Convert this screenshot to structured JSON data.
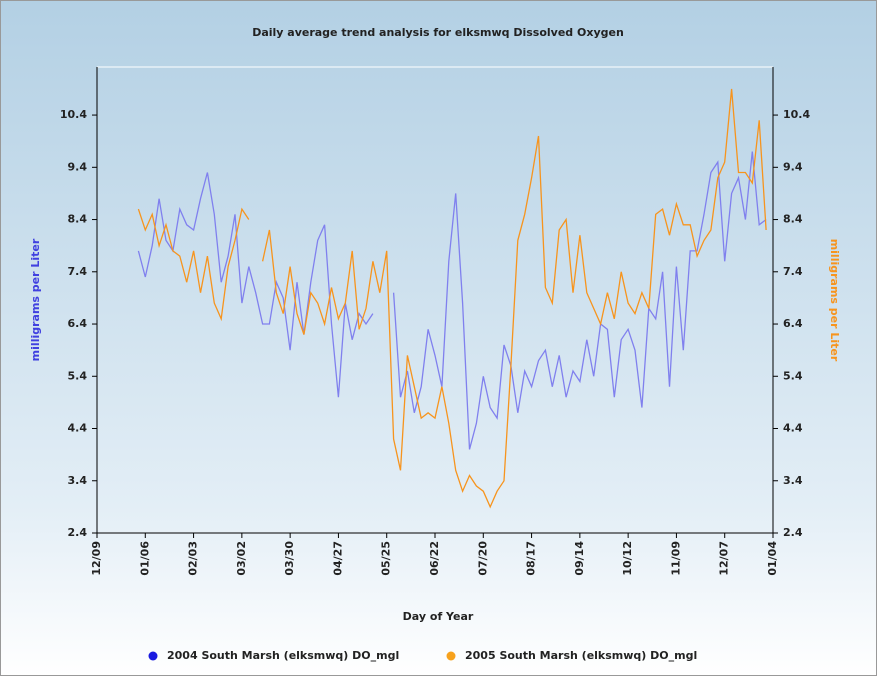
{
  "chart_data": {
    "type": "line",
    "title": "Daily average trend analysis for elksmwq Dissolved Oxygen",
    "xlabel": "Day of Year",
    "ylabel": "milligrams per Liter",
    "y2label": "milligrams per Liter",
    "xlim": [
      0,
      392
    ],
    "xticks": [
      {
        "value": 0,
        "label": "12/09"
      },
      {
        "value": 28,
        "label": "01/06"
      },
      {
        "value": 56,
        "label": "02/03"
      },
      {
        "value": 84,
        "label": "03/02"
      },
      {
        "value": 112,
        "label": "03/30"
      },
      {
        "value": 140,
        "label": "04/27"
      },
      {
        "value": 168,
        "label": "05/25"
      },
      {
        "value": 196,
        "label": "06/22"
      },
      {
        "value": 224,
        "label": "07/20"
      },
      {
        "value": 252,
        "label": "08/17"
      },
      {
        "value": 280,
        "label": "09/14"
      },
      {
        "value": 308,
        "label": "10/12"
      },
      {
        "value": 336,
        "label": "11/09"
      },
      {
        "value": 364,
        "label": "12/07"
      },
      {
        "value": 392,
        "label": "01/04"
      }
    ],
    "ylim": [
      2.4,
      11.32
    ],
    "yticks": [
      2.4,
      3.4,
      4.4,
      5.4,
      6.4,
      7.4,
      8.4,
      9.4,
      10.4
    ],
    "y2lim": [
      2.4,
      11.32
    ],
    "y2ticks": [
      2.4,
      3.4,
      4.4,
      5.4,
      6.4,
      7.4,
      8.4,
      9.4,
      10.4
    ],
    "x": [
      24,
      28,
      32,
      36,
      40,
      44,
      48,
      52,
      56,
      60,
      64,
      68,
      72,
      76,
      80,
      84,
      88,
      92,
      96,
      100,
      104,
      108,
      112,
      116,
      120,
      124,
      128,
      132,
      136,
      140,
      144,
      148,
      152,
      156,
      160,
      164,
      168,
      172,
      176,
      180,
      184,
      188,
      192,
      196,
      200,
      204,
      208,
      212,
      216,
      220,
      224,
      228,
      232,
      236,
      240,
      244,
      248,
      252,
      256,
      260,
      264,
      268,
      272,
      276,
      280,
      284,
      288,
      292,
      296,
      300,
      304,
      308,
      312,
      316,
      320,
      324,
      328,
      332,
      336,
      340,
      344,
      348,
      352,
      356,
      360,
      364,
      368,
      372,
      376,
      380,
      384,
      388
    ],
    "series": [
      {
        "name": "2004 South Marsh (elksmwq) DO_mgl",
        "color": "#8080ee",
        "legend_color": "#1a1ae0",
        "values": [
          7.8,
          7.3,
          7.9,
          8.8,
          8.0,
          7.8,
          8.6,
          8.3,
          8.2,
          8.8,
          9.3,
          8.5,
          7.2,
          7.7,
          8.5,
          6.8,
          7.5,
          7.0,
          6.4,
          6.4,
          7.2,
          6.9,
          5.9,
          7.2,
          6.2,
          7.2,
          8.0,
          8.3,
          6.4,
          5.0,
          6.8,
          6.1,
          6.6,
          6.4,
          6.6,
          null,
          null,
          7.0,
          5.0,
          5.5,
          4.7,
          5.2,
          6.3,
          5.8,
          5.2,
          7.6,
          8.9,
          6.8,
          4.0,
          4.5,
          5.4,
          4.8,
          4.6,
          6.0,
          5.6,
          4.7,
          5.5,
          5.2,
          5.7,
          5.9,
          5.2,
          5.8,
          5.0,
          5.5,
          5.3,
          6.1,
          5.4,
          6.4,
          6.3,
          5.0,
          6.1,
          6.3,
          5.9,
          4.8,
          6.7,
          6.5,
          7.4,
          5.2,
          7.5,
          5.9,
          7.8,
          7.8,
          8.5,
          9.3,
          9.5,
          7.6,
          8.9,
          9.2,
          8.4,
          9.7,
          8.3,
          8.4
        ]
      },
      {
        "name": "2005 South Marsh (elksmwq) DO_mgl",
        "color": "#f7941d",
        "legend_color": "#f7a21d",
        "axis": "y2",
        "values": [
          8.6,
          8.2,
          8.5,
          7.9,
          8.3,
          7.8,
          7.7,
          7.2,
          7.8,
          7.0,
          7.7,
          6.8,
          6.5,
          7.5,
          8.0,
          8.6,
          8.4,
          null,
          7.6,
          8.2,
          7.0,
          6.6,
          7.5,
          6.6,
          6.2,
          7.0,
          6.8,
          6.4,
          7.1,
          6.5,
          6.8,
          7.8,
          6.3,
          6.7,
          7.6,
          7.0,
          7.8,
          4.2,
          3.6,
          5.8,
          5.2,
          4.6,
          4.7,
          4.6,
          5.2,
          4.5,
          3.6,
          3.2,
          3.5,
          3.3,
          3.2,
          2.9,
          3.2,
          3.4,
          5.6,
          8.0,
          8.5,
          9.2,
          10.0,
          7.1,
          6.8,
          8.2,
          8.4,
          7.0,
          8.1,
          7.0,
          6.7,
          6.4,
          7.0,
          6.5,
          7.4,
          6.8,
          6.6,
          7.0,
          6.7,
          8.5,
          8.6,
          8.1,
          8.7,
          8.3,
          8.3,
          7.7,
          8.0,
          8.2,
          9.2,
          9.5,
          10.9,
          9.3,
          9.3,
          9.1,
          10.3,
          8.2
        ]
      }
    ]
  }
}
